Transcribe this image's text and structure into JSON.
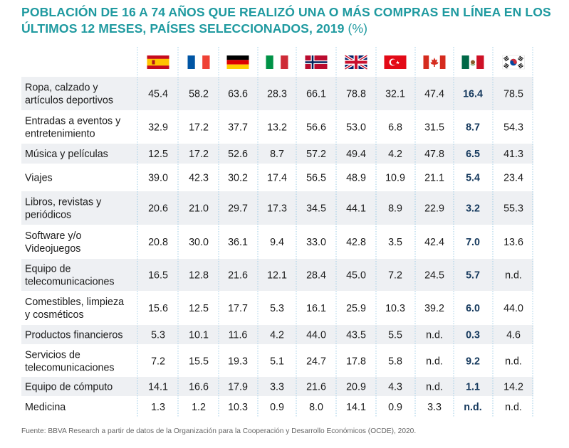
{
  "title": {
    "text": "POBLACIÓN DE 16 A 74 AÑOS QUE REALIZÓ UNA O MÁS COMPRAS EN LÍNEA EN LOS ÚLTIMOS 12 MESES, PAÍSES SELECCIONADOS, 2019",
    "unit": "(%)"
  },
  "source": "Fuente: BBVA Research a partir de datos de la Organización para la Cooperación y Desarrollo Económicos (OCDE), 2020.",
  "colors": {
    "title": "#1f9aa0",
    "stripe": "#eef0f3",
    "highlight_text": "#14385c",
    "separator": "#9fcde6"
  },
  "chart_data": {
    "type": "table",
    "title": "POBLACIÓN DE 16 A 74 AÑOS QUE REALIZÓ UNA O MÁS COMPRAS EN LÍNEA EN LOS ÚLTIMOS 12 MESES, PAÍSES SELECCIONADOS, 2019 (%)",
    "highlight_column": 8,
    "columns": [
      {
        "flag": "spain-flag"
      },
      {
        "flag": "france-flag"
      },
      {
        "flag": "germany-flag"
      },
      {
        "flag": "italy-flag"
      },
      {
        "flag": "norway-flag"
      },
      {
        "flag": "united-kingdom-flag"
      },
      {
        "flag": "turkey-flag"
      },
      {
        "flag": "canada-flag"
      },
      {
        "flag": "mexico-flag"
      },
      {
        "flag": "south-korea-flag"
      }
    ],
    "rows": [
      {
        "label": [
          "Ropa, calzado y",
          "artículos deportivos"
        ],
        "values": [
          "45.4",
          "58.2",
          "63.6",
          "28.3",
          "66.1",
          "78.8",
          "32.1",
          "47.4",
          "16.4",
          "78.5"
        ]
      },
      {
        "label": [
          "Entradas a eventos y",
          "entretenimiento"
        ],
        "values": [
          "32.9",
          "17.2",
          "37.7",
          "13.2",
          "56.6",
          "53.0",
          "6.8",
          "31.5",
          "8.7",
          "54.3"
        ]
      },
      {
        "label": [
          "Música y películas"
        ],
        "values": [
          "12.5",
          "17.2",
          "52.6",
          "8.7",
          "57.2",
          "49.4",
          "4.2",
          "47.8",
          "6.5",
          "41.3"
        ]
      },
      {
        "label": [
          "Viajes"
        ],
        "values": [
          "39.0",
          "42.3",
          "30.2",
          "17.4",
          "56.5",
          "48.9",
          "10.9",
          "21.1",
          "5.4",
          "23.4"
        ]
      },
      {
        "label": [
          "Libros, revistas y",
          "periódicos"
        ],
        "values": [
          "20.6",
          "21.0",
          "29.7",
          "17.3",
          "34.5",
          "44.1",
          "8.9",
          "22.9",
          "3.2",
          "55.3"
        ]
      },
      {
        "label": [
          "Software y/o",
          "Videojuegos"
        ],
        "values": [
          "20.8",
          "30.0",
          "36.1",
          "9.4",
          "33.0",
          "42.8",
          "3.5",
          "42.4",
          "7.0",
          "13.6"
        ]
      },
      {
        "label": [
          "Equipo de",
          "telecomunicaciones"
        ],
        "values": [
          "16.5",
          "12.8",
          "21.6",
          "12.1",
          "28.4",
          "45.0",
          "7.2",
          "24.5",
          "5.7",
          "n.d."
        ]
      },
      {
        "label": [
          "Comestibles, limpieza",
          "y cosméticos"
        ],
        "values": [
          "15.6",
          "12.5",
          "17.7",
          "5.3",
          "16.1",
          "25.9",
          "10.3",
          "39.2",
          "6.0",
          "44.0"
        ]
      },
      {
        "label": [
          "Productos financieros"
        ],
        "values": [
          "5.3",
          "10.1",
          "11.6",
          "4.2",
          "44.0",
          "43.5",
          "5.5",
          "n.d.",
          "0.3",
          "4.6"
        ]
      },
      {
        "label": [
          "Servicios de",
          "telecomunicaciones"
        ],
        "values": [
          "7.2",
          "15.5",
          "19.3",
          "5.1",
          "24.7",
          "17.8",
          "5.8",
          "n.d.",
          "9.2",
          "n.d."
        ]
      },
      {
        "label": [
          "Equipo de cómputo"
        ],
        "values": [
          "14.1",
          "16.6",
          "17.9",
          "3.3",
          "21.6",
          "20.9",
          "4.3",
          "n.d.",
          "1.1",
          "14.2"
        ]
      },
      {
        "label": [
          "Medicina"
        ],
        "values": [
          "1.3",
          "1.2",
          "10.3",
          "0.9",
          "8.0",
          "14.1",
          "0.9",
          "3.3",
          "n.d.",
          "n.d."
        ]
      }
    ]
  }
}
